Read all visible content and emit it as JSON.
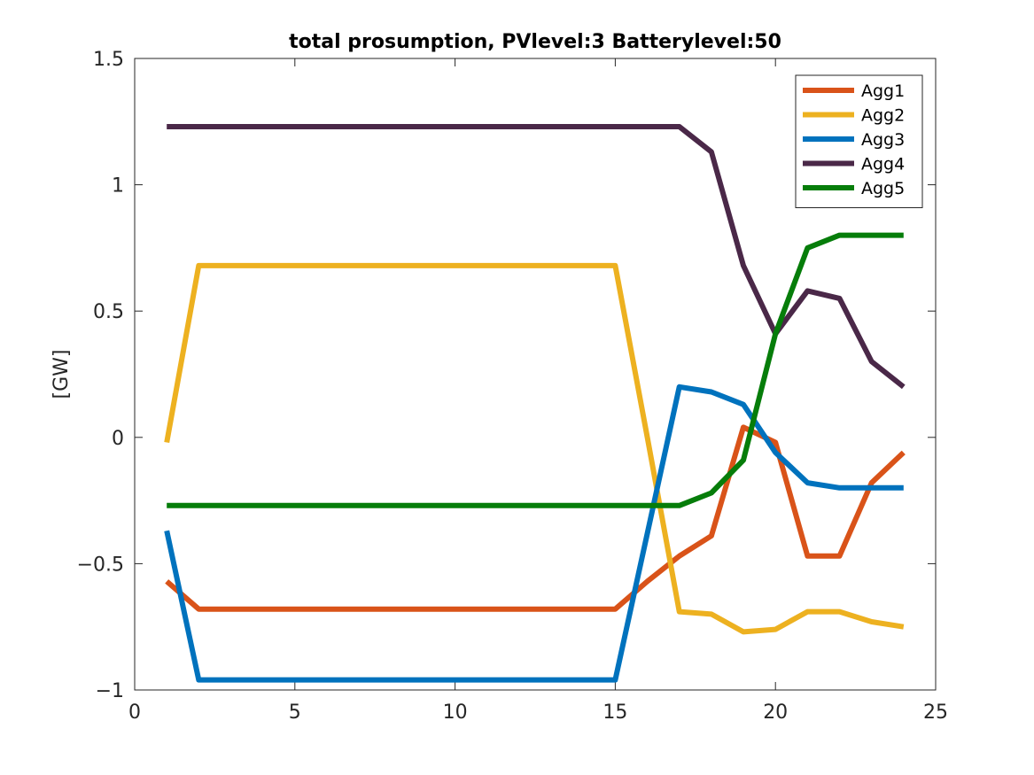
{
  "chart_data": {
    "type": "line",
    "title": "total prosumption, PVlevel:3 Batterylevel:50",
    "xlabel": "",
    "ylabel": "[GW]",
    "xlim": [
      0,
      25
    ],
    "ylim": [
      -1,
      1.5
    ],
    "xticks": [
      0,
      5,
      10,
      15,
      20,
      25
    ],
    "xtick_labels": [
      "0",
      "5",
      "10",
      "15",
      "20",
      "25"
    ],
    "yticks": [
      -1,
      -0.5,
      0,
      0.5,
      1,
      1.5
    ],
    "ytick_labels": [
      "−1",
      "−0.5",
      "0",
      "0.5",
      "1",
      "1.5"
    ],
    "grid": false,
    "legend_position": "top-right",
    "x": [
      1,
      2,
      3,
      4,
      5,
      6,
      7,
      8,
      9,
      10,
      11,
      12,
      13,
      14,
      15,
      16,
      17,
      18,
      19,
      20,
      21,
      22,
      23,
      24
    ],
    "series": [
      {
        "name": "Agg1",
        "color": "#D95319",
        "values": [
          -0.57,
          -0.68,
          -0.68,
          -0.68,
          -0.68,
          -0.68,
          -0.68,
          -0.68,
          -0.68,
          -0.68,
          -0.68,
          -0.68,
          -0.68,
          -0.68,
          -0.68,
          -0.57,
          -0.47,
          -0.39,
          0.04,
          -0.02,
          -0.47,
          -0.47,
          -0.18,
          -0.06
        ]
      },
      {
        "name": "Agg2",
        "color": "#EDB120",
        "values": [
          -0.02,
          0.68,
          0.68,
          0.68,
          0.68,
          0.68,
          0.68,
          0.68,
          0.68,
          0.68,
          0.68,
          0.68,
          0.68,
          0.68,
          0.68,
          0.0,
          -0.69,
          -0.7,
          -0.77,
          -0.76,
          -0.69,
          -0.69,
          -0.73,
          -0.75
        ]
      },
      {
        "name": "Agg3",
        "color": "#0072BD",
        "values": [
          -0.37,
          -0.96,
          -0.96,
          -0.96,
          -0.96,
          -0.96,
          -0.96,
          -0.96,
          -0.96,
          -0.96,
          -0.96,
          -0.96,
          -0.96,
          -0.96,
          -0.96,
          -0.38,
          0.2,
          0.18,
          0.13,
          -0.06,
          -0.18,
          -0.2,
          -0.2,
          -0.2
        ]
      },
      {
        "name": "Agg4",
        "color": "#4A2848",
        "values": [
          1.23,
          1.23,
          1.23,
          1.23,
          1.23,
          1.23,
          1.23,
          1.23,
          1.23,
          1.23,
          1.23,
          1.23,
          1.23,
          1.23,
          1.23,
          1.23,
          1.23,
          1.13,
          0.68,
          0.41,
          0.58,
          0.55,
          0.3,
          0.2
        ]
      },
      {
        "name": "Agg5",
        "color": "#067D0A",
        "values": [
          -0.27,
          -0.27,
          -0.27,
          -0.27,
          -0.27,
          -0.27,
          -0.27,
          -0.27,
          -0.27,
          -0.27,
          -0.27,
          -0.27,
          -0.27,
          -0.27,
          -0.27,
          -0.27,
          -0.27,
          -0.22,
          -0.09,
          0.41,
          0.75,
          0.8,
          0.8,
          0.8
        ]
      }
    ]
  }
}
